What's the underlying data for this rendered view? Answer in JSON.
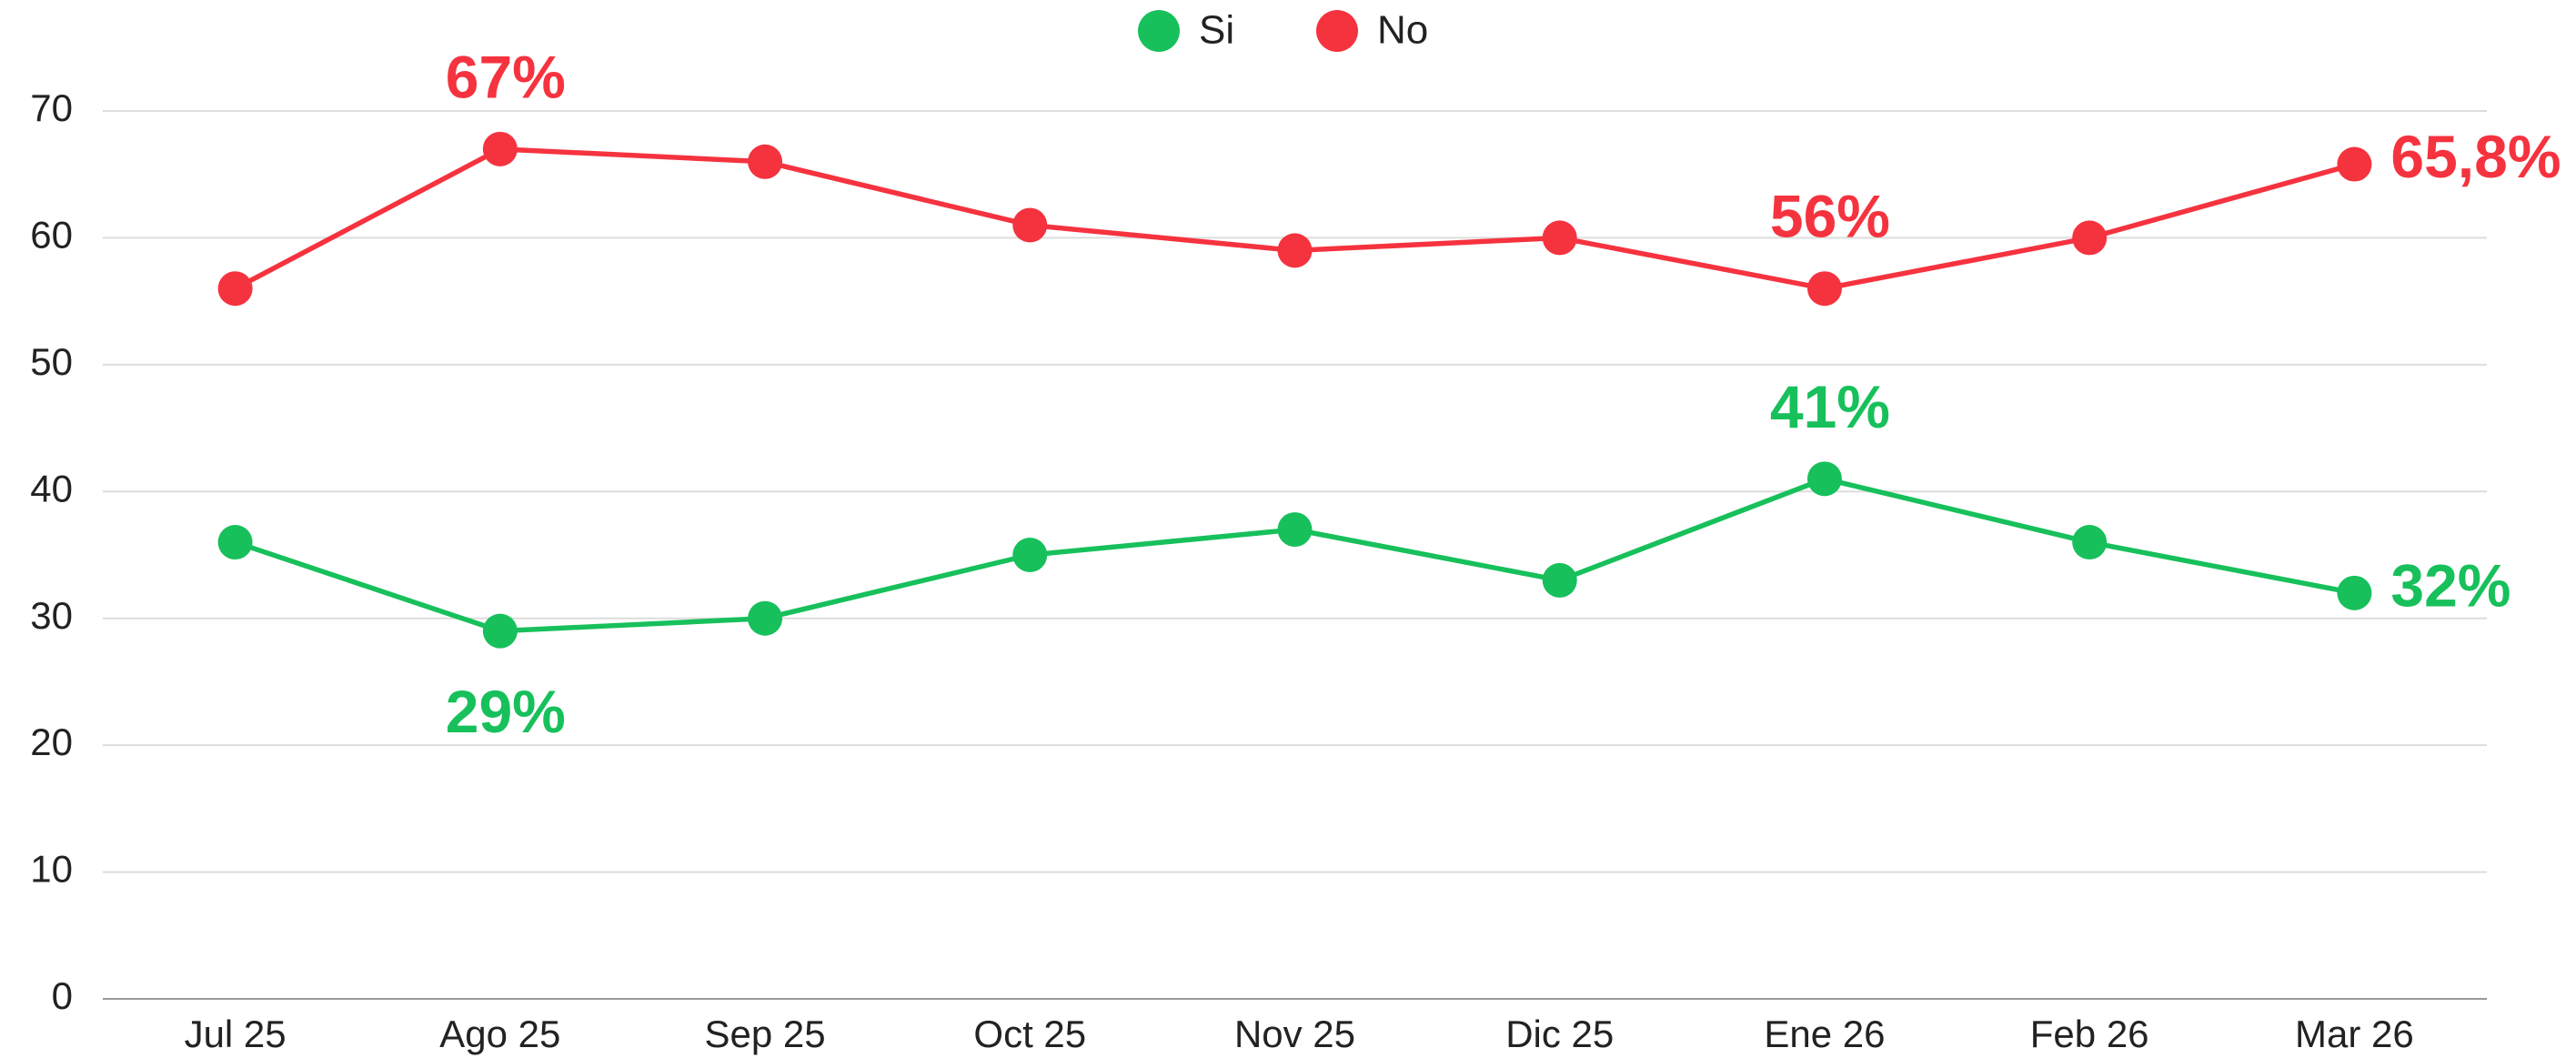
{
  "chart_data": {
    "type": "line",
    "categories": [
      "Jul 25",
      "Ago 25",
      "Sep 25",
      "Oct 25",
      "Nov 25",
      "Dic 25",
      "Ene 26",
      "Feb 26",
      "Mar 26"
    ],
    "series": [
      {
        "name": "Si",
        "color": "#17c05b",
        "values": [
          36,
          29,
          30,
          35,
          37,
          33,
          41,
          36,
          32
        ],
        "value_labels": [
          null,
          "29%",
          null,
          null,
          null,
          null,
          "41%",
          null,
          "32%"
        ]
      },
      {
        "name": "No",
        "color": "#f5333f",
        "values": [
          56,
          67,
          66,
          61,
          59,
          60,
          56,
          60,
          65.8
        ],
        "value_labels": [
          null,
          "67%",
          null,
          null,
          null,
          null,
          "56%",
          null,
          "65,8%"
        ]
      }
    ],
    "ylim": [
      0,
      70
    ],
    "yticks": [
      0,
      10,
      20,
      30,
      40,
      50,
      60,
      70
    ],
    "grid": true,
    "legend": "top"
  }
}
